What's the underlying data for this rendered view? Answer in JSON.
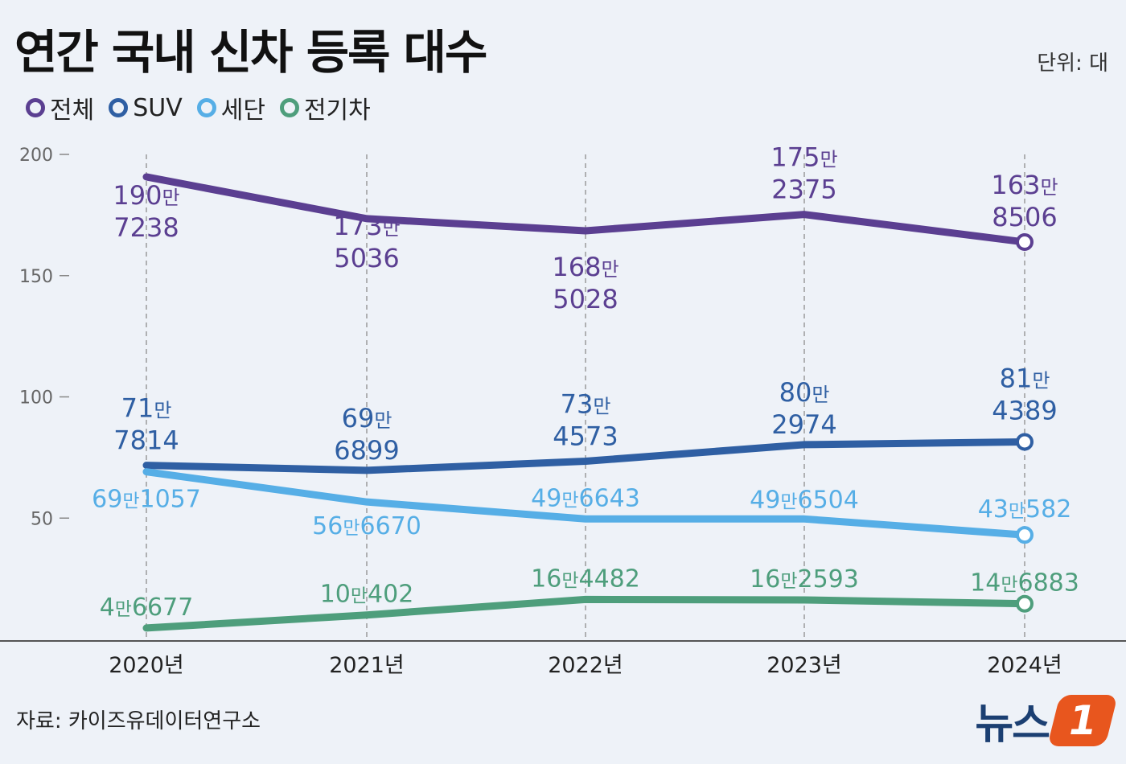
{
  "title": "연간 국내 신차 등록 대수",
  "unit": "단위: 대",
  "source": "자료: 카이즈유데이터연구소",
  "logo": {
    "text": "뉴스",
    "badge": "1"
  },
  "chart_data": {
    "type": "line",
    "categories": [
      "2020년",
      "2021년",
      "2022년",
      "2023년",
      "2024년"
    ],
    "ylim": [
      0,
      200
    ],
    "yticks": [
      "200",
      "150",
      "100",
      "50"
    ],
    "ytick_values": [
      200,
      150,
      100,
      50
    ],
    "series": [
      {
        "name": "전체",
        "color": "#5b3f91",
        "values": [
          1907238,
          1735036,
          1685028,
          1752375,
          1638506
        ],
        "labels": [
          [
            "190만",
            "7238"
          ],
          [
            "173만",
            "5036"
          ],
          [
            "168만",
            "5028"
          ],
          [
            "175만",
            "2375"
          ],
          [
            "163만",
            "8506"
          ]
        ]
      },
      {
        "name": "SUV",
        "color": "#2f5fa3",
        "values": [
          717814,
          696899,
          734573,
          802974,
          814389
        ],
        "labels": [
          [
            "71만",
            "7814"
          ],
          [
            "69만",
            "6899"
          ],
          [
            "73만",
            "4573"
          ],
          [
            "80만",
            "2974"
          ],
          [
            "81만",
            "4389"
          ]
        ]
      },
      {
        "name": "세단",
        "color": "#56aee6",
        "values": [
          691057,
          566670,
          496643,
          496504,
          430582
        ],
        "labels": [
          [
            "69만",
            "1057"
          ],
          [
            "56만",
            "6670"
          ],
          [
            "49만",
            "6643"
          ],
          [
            "49만",
            "6504"
          ],
          [
            "43만",
            "582"
          ]
        ]
      },
      {
        "name": "전기차",
        "color": "#4e9e7c",
        "values": [
          46677,
          100402,
          164482,
          162593,
          146883
        ],
        "labels": [
          [
            "4만",
            "6677"
          ],
          [
            "10만",
            "402"
          ],
          [
            "16만",
            "4482"
          ],
          [
            "16만",
            "2593"
          ],
          [
            "14만",
            "6883"
          ]
        ]
      }
    ]
  }
}
